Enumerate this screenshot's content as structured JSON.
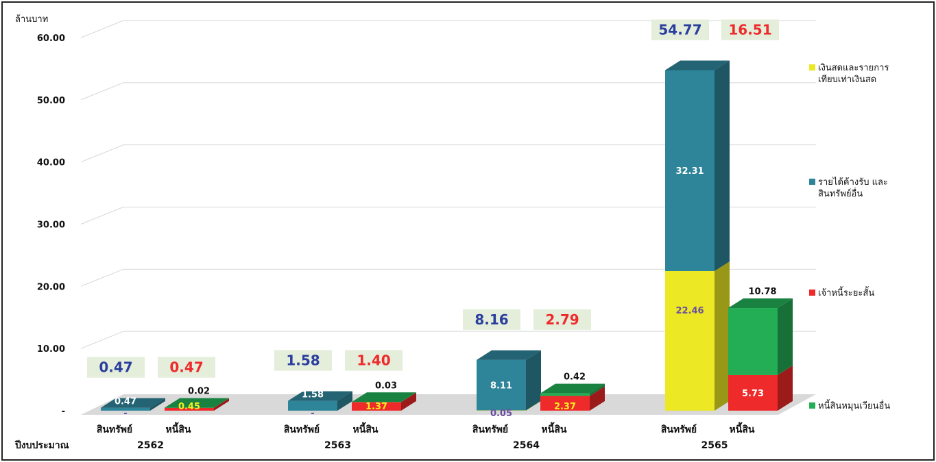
{
  "chart_data": {
    "type": "bar",
    "ylabel": "ล้านบาท",
    "xlabel": "ปีงบประมาณ",
    "ylim": [
      0,
      60
    ],
    "yticks": [
      "-",
      "10.00",
      "20.00",
      "30.00",
      "40.00",
      "50.00",
      "60.00"
    ],
    "years": [
      "2562",
      "2563",
      "2564",
      "2565"
    ],
    "bar_labels": [
      "สินทรัพย์",
      "หนี้สิน"
    ],
    "series": [
      {
        "name": "เงินสดและรายการเทียบเท่าเงินสด",
        "stack": "asset",
        "color": "#ECE824",
        "values": [
          0,
          0,
          0.05,
          22.46
        ],
        "labels": [
          "-",
          "-",
          "0.05",
          "22.46"
        ]
      },
      {
        "name": "รายได้ค้างรับ และสินทรัพย์อื่น",
        "stack": "asset",
        "color": "#2E8499",
        "values": [
          0.47,
          1.58,
          8.11,
          32.31
        ],
        "labels": [
          "0.47",
          "1.58",
          "8.11",
          "32.31"
        ]
      },
      {
        "name": "เจ้าหนี้ระยะสั้น",
        "stack": "liability",
        "color": "#EE2A2A",
        "values": [
          0.45,
          1.37,
          2.37,
          5.73
        ],
        "labels": [
          "0.45",
          "1.37",
          "2.37",
          "5.73"
        ]
      },
      {
        "name": "หนี้สินหมุนเวียนอื่น",
        "stack": "liability",
        "color": "#23AD55",
        "values": [
          0.02,
          0.03,
          0.42,
          10.78
        ],
        "labels": [
          "0.02",
          "0.03",
          "0.42",
          "10.78"
        ]
      }
    ],
    "asset_totals": [
      "0.47",
      "1.58",
      "8.16",
      "54.77"
    ],
    "liability_totals": [
      "0.47",
      "1.40",
      "2.79",
      "16.51"
    ],
    "colors": {
      "asset_total_text": "#2A3E9E",
      "liability_total_text": "#EE2A2A",
      "total_box": "#E4EEDB"
    },
    "legend": {
      "position": "right",
      "items": [
        {
          "lines": [
            "เงินสดและรายการ",
            "เทียบเท่าเงินสด"
          ],
          "color": "#ECE824"
        },
        {
          "lines": [
            "รายได้ค้างรับ และ",
            "สินทรัพย์อื่น"
          ],
          "color": "#2E8499"
        },
        {
          "lines": [
            "เจ้าหนี้ระยะสั้น"
          ],
          "color": "#EE2A2A"
        },
        {
          "lines": [
            "หนี้สินหมุนเวียนอื่น"
          ],
          "color": "#23AD55"
        }
      ]
    },
    "grid": true
  }
}
